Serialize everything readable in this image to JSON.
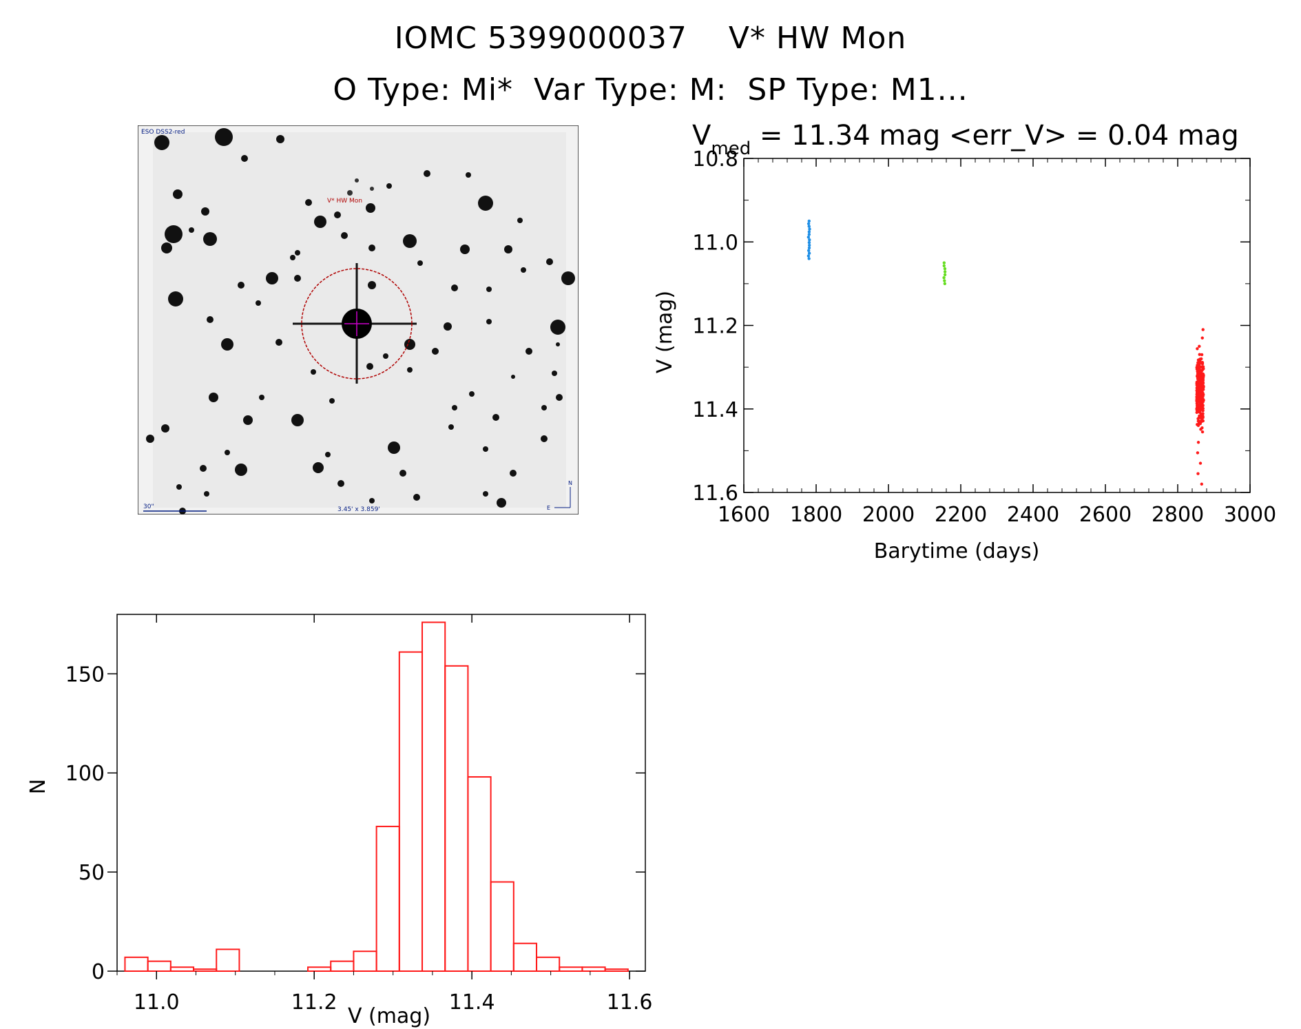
{
  "header": {
    "title_line1": "IOMC 5399000037    V* HW Mon",
    "title_line2": "O Type: Mi*  Var Type: M:  SP Type: M1..."
  },
  "finder": {
    "survey_label": "ESO DSS2-red",
    "target_label": "V* HW Mon",
    "scale_label": "30\"",
    "fov_label": "3.45' x 3.859'",
    "north_label": "N",
    "east_label": "E"
  },
  "chart_data": [
    {
      "type": "scatter",
      "title_prefix": "V",
      "title_sub": "med",
      "title_rest": " = 11.34 mag <err_V> = 0.04 mag",
      "xlabel": "Barytime (days)",
      "ylabel": "V (mag)",
      "xlim": [
        1600,
        3000
      ],
      "ylim": [
        11.6,
        10.8
      ],
      "xticks": [
        1600,
        1800,
        2000,
        2200,
        2400,
        2600,
        2800,
        3000
      ],
      "yticks": [
        10.8,
        11.0,
        11.2,
        11.4,
        11.6
      ],
      "series": [
        {
          "color": "#1f8fe6",
          "x_center": 1780,
          "v_min": 10.95,
          "v_max": 11.04,
          "n": 15
        },
        {
          "color": "#66dd22",
          "x_center": 2155,
          "v_min": 11.05,
          "v_max": 11.1,
          "n": 8
        },
        {
          "color": "#ff1a1a",
          "x_center": 2862,
          "v_min": 11.21,
          "v_max": 11.58,
          "n": 320
        }
      ]
    },
    {
      "type": "bar",
      "xlabel": "V (mag)",
      "ylabel": "N",
      "xlim": [
        10.95,
        11.62
      ],
      "ylim": [
        0,
        180
      ],
      "xticks": [
        11.0,
        11.2,
        11.4,
        11.6
      ],
      "yticks": [
        0,
        50,
        100,
        150
      ],
      "bin_start": 10.96,
      "bin_width": 0.029,
      "values": [
        7,
        5,
        2,
        1,
        11,
        0,
        0,
        0,
        2,
        5,
        10,
        73,
        161,
        176,
        154,
        98,
        45,
        14,
        7,
        2,
        2,
        1
      ],
      "color": "#ff1a1a"
    }
  ]
}
